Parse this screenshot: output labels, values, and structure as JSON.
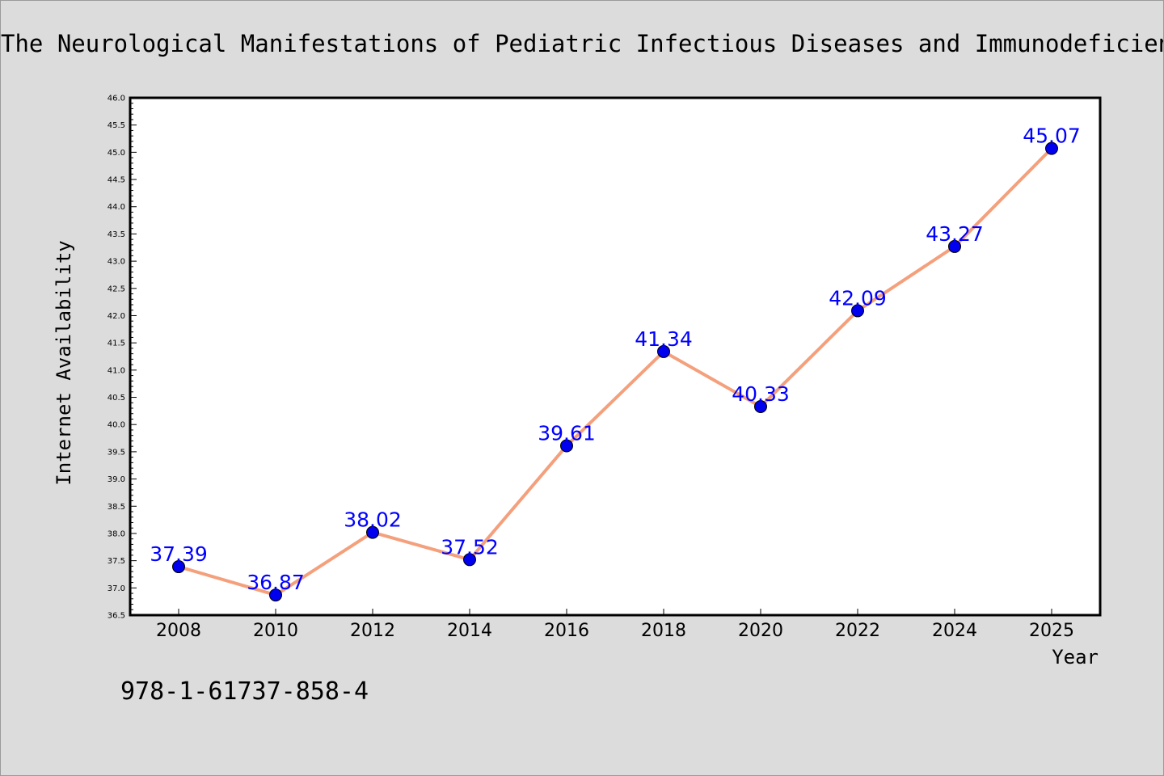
{
  "chart_data": {
    "type": "line",
    "title": "The Neurological Manifestations of Pediatric Infectious Diseases and Immunodeficiency Syndromes",
    "xlabel": "Year",
    "ylabel": "Internet Availability",
    "categories": [
      "2008",
      "2010",
      "2012",
      "2014",
      "2016",
      "2018",
      "2020",
      "2022",
      "2024",
      "2025"
    ],
    "series": [
      {
        "values": [
          37.39,
          36.87,
          38.02,
          37.52,
          39.61,
          41.34,
          40.33,
          42.09,
          43.27,
          45.07
        ],
        "data_labels": [
          "37.39",
          "36.87",
          "38.02",
          "37.52",
          "39.61",
          "41.34",
          "40.33",
          "42.09",
          "43.27",
          "45.07"
        ]
      }
    ],
    "ylim": [
      36.5,
      46.0
    ],
    "y_ticks": [
      "36.5",
      "37.0",
      "37.5",
      "38.0",
      "38.5",
      "39.0",
      "39.5",
      "40.0",
      "40.5",
      "41.0",
      "41.5",
      "42.0",
      "42.5",
      "43.0",
      "43.5",
      "44.0",
      "44.5",
      "45.0",
      "45.5",
      "46.0"
    ],
    "grid": false,
    "legend": "none",
    "colors": {
      "line": "#f4a07c",
      "marker": "#0000ee",
      "label": "#0000ff"
    }
  },
  "footnote": "978-1-61737-858-4"
}
